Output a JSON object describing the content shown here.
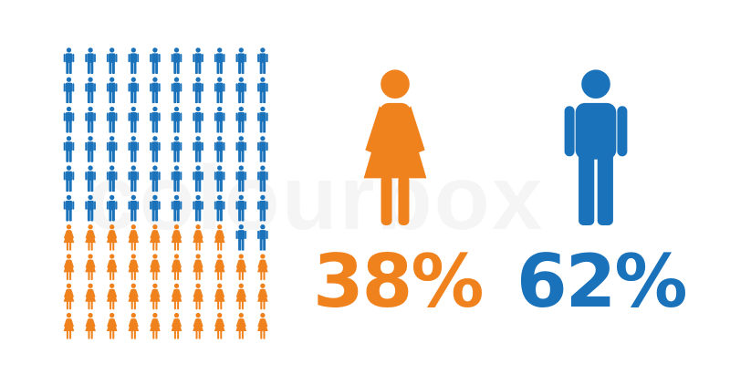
{
  "watermark": "colourbox",
  "colors": {
    "female": "#f0821e",
    "male": "#1a72bb"
  },
  "chart_data": {
    "type": "pictogram",
    "grid": {
      "rows": 10,
      "columns": 10
    },
    "series": [
      {
        "name": "female",
        "icon": "woman-icon",
        "value": 38,
        "color": "#f0821e"
      },
      {
        "name": "male",
        "icon": "man-icon",
        "value": 62,
        "color": "#1a72bb"
      }
    ],
    "labels": {
      "female": "38%",
      "male": "62%"
    }
  }
}
